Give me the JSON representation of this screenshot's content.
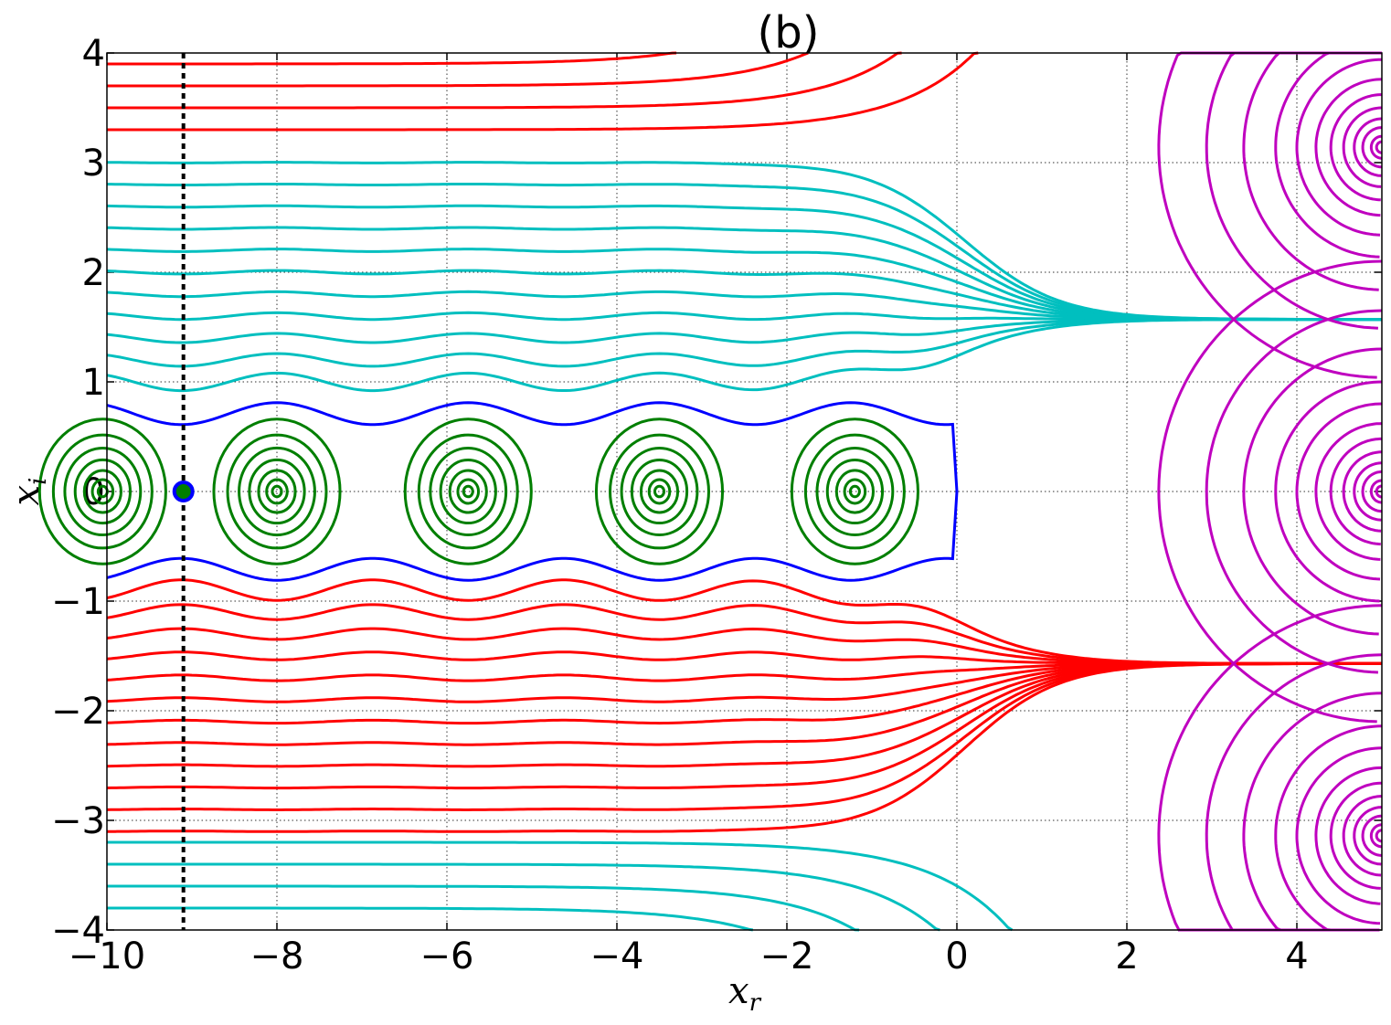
{
  "chart_data": {
    "type": "line",
    "title": "(b)",
    "xlabel": "x",
    "xlabel_sub": "r",
    "ylabel": "x",
    "ylabel_sub": "i",
    "xlim": [
      -10,
      5
    ],
    "ylim": [
      -4,
      4
    ],
    "x_ticks": [
      -10,
      -8,
      -6,
      -4,
      -2,
      0,
      2,
      4
    ],
    "x_tick_labels": [
      "−10",
      "−8",
      "−6",
      "−4",
      "−2",
      "0",
      "2",
      "4"
    ],
    "y_ticks": [
      -4,
      -3,
      -2,
      -1,
      0,
      1,
      2,
      3,
      4
    ],
    "y_tick_labels": [
      "−4",
      "−3",
      "−2",
      "−1",
      "0",
      "1",
      "2",
      "3",
      "4"
    ],
    "grid": true,
    "colors": {
      "red": "#ff0000",
      "cyan": "#00bfbf",
      "blue": "#0000ff",
      "green": "#007f00",
      "magenta": "#bf00bf",
      "black": "#000000"
    },
    "vertical_marker_line": {
      "x": -9.1,
      "style": "dotted"
    },
    "point_marker": {
      "x": -9.1,
      "y": 0
    },
    "separatrix_x_end": 0,
    "centers": [
      {
        "x": -10.05,
        "y": 0
      },
      {
        "x": -8.0,
        "y": 0
      },
      {
        "x": -5.75,
        "y": 0
      },
      {
        "x": -3.5,
        "y": 0
      },
      {
        "x": -1.2,
        "y": 0
      }
    ],
    "asymptotes_y": [
      1.57,
      -1.57
    ],
    "upper_red_levels": [
      3.3,
      3.5,
      3.7,
      3.9
    ],
    "upper_cyan_levels": [
      3.0,
      2.8,
      2.6,
      2.4,
      2.2,
      2.0,
      1.8,
      1.6,
      1.4,
      1.2,
      1.0
    ],
    "lower_red_levels": [
      -0.9,
      -1.1,
      -1.3,
      -1.5,
      -1.7,
      -1.9,
      -2.1,
      -2.3,
      -2.5,
      -2.7,
      -2.9,
      -3.1
    ],
    "lower_cyan_levels": [
      -3.2,
      -3.4,
      -3.6,
      -3.8
    ],
    "magenta_centers_y": [
      3.14,
      0,
      -3.14
    ],
    "magenta_radii": [
      0.05,
      0.1,
      0.18,
      0.26,
      0.36,
      0.48,
      0.62,
      0.8,
      1.0,
      1.3,
      1.65,
      2.1
    ]
  }
}
